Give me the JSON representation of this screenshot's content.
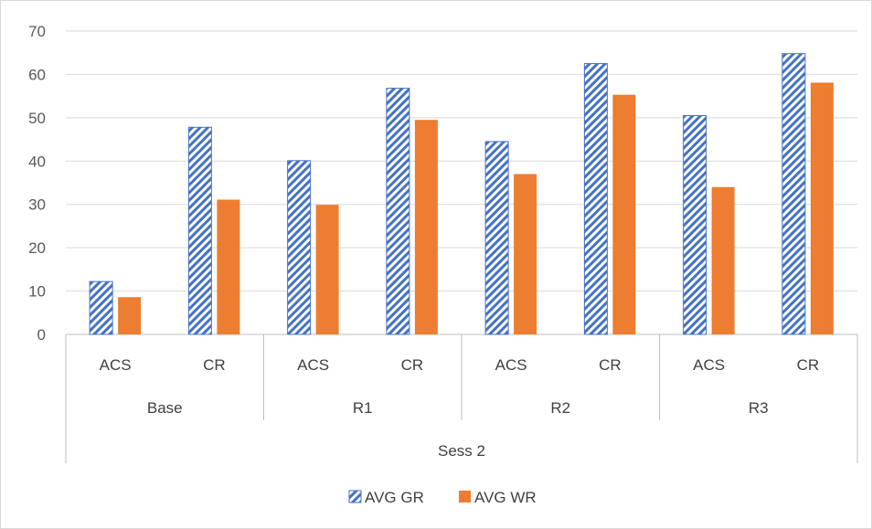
{
  "chart_data": {
    "type": "bar",
    "categories": [
      {
        "sub": "ACS",
        "group": "Base"
      },
      {
        "sub": "CR",
        "group": "Base"
      },
      {
        "sub": "ACS",
        "group": "R1"
      },
      {
        "sub": "CR",
        "group": "R1"
      },
      {
        "sub": "ACS",
        "group": "R2"
      },
      {
        "sub": "CR",
        "group": "R2"
      },
      {
        "sub": "ACS",
        "group": "R3"
      },
      {
        "sub": "CR",
        "group": "R3"
      }
    ],
    "groups": [
      "Base",
      "R1",
      "R2",
      "R3"
    ],
    "session": "Sess 2",
    "series": [
      {
        "name": "AVG GR",
        "color": "#4472C4",
        "pattern": "diagonal-hatch",
        "values": [
          12.2,
          47.8,
          40.1,
          56.8,
          44.5,
          62.5,
          50.5,
          64.8
        ]
      },
      {
        "name": "AVG WR",
        "color": "#ED7D31",
        "pattern": "solid",
        "values": [
          8.6,
          31.1,
          29.9,
          49.5,
          37.0,
          55.3,
          34.0,
          58.1
        ]
      }
    ],
    "ylim": [
      0,
      70
    ],
    "yticks": [
      0,
      10,
      20,
      30,
      40,
      50,
      60,
      70
    ],
    "grid": true,
    "legend": "bottom",
    "title": "",
    "xlabel": "",
    "ylabel": ""
  }
}
